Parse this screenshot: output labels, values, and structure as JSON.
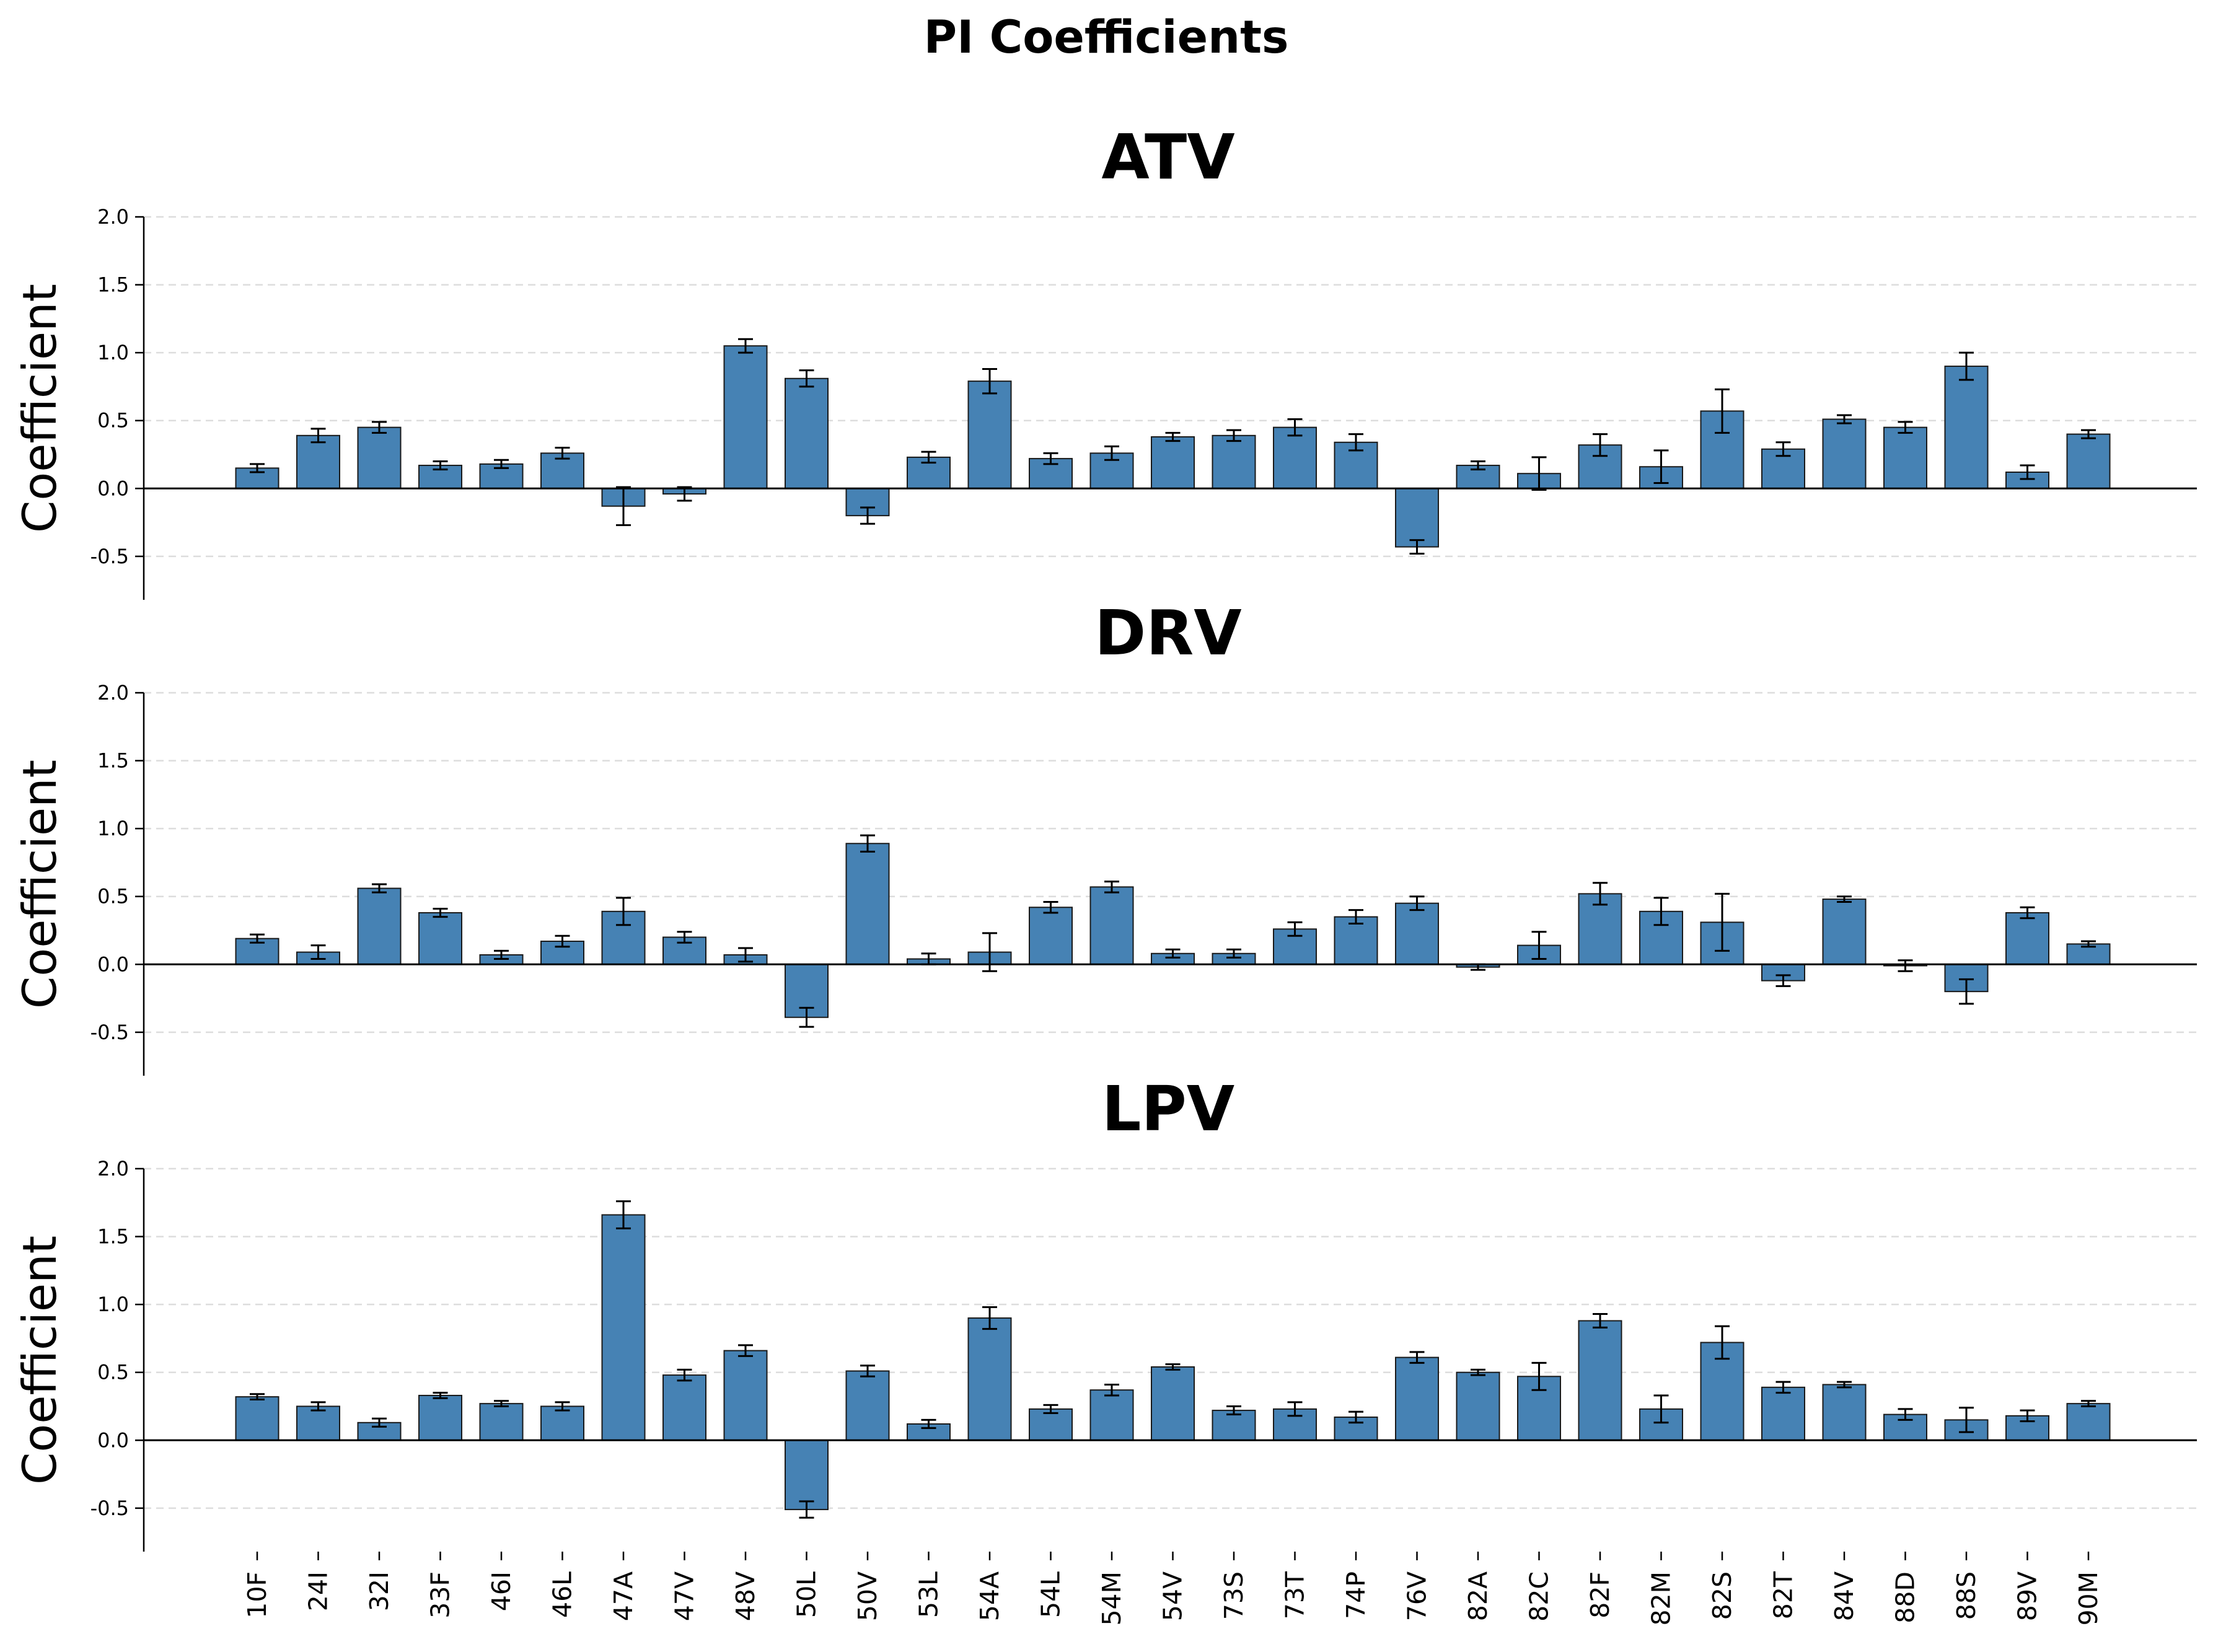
{
  "figure": {
    "title": "PI Coefficients"
  },
  "colors": {
    "bar_fill": "#4682b4",
    "bar_edge": "#1a1a1a",
    "error_bar": "#000000",
    "grid": "#dddddd",
    "axis": "#000000"
  },
  "chart_data": [
    {
      "type": "bar",
      "title": "ATV",
      "ylabel": "Coefficient",
      "xlabel": "",
      "ylim": [
        -0.82,
        2.0
      ],
      "yticks": [
        -0.5,
        0.0,
        0.5,
        1.0,
        1.5,
        2.0
      ],
      "grid": "horizontal dashed",
      "categories": [
        "10F",
        "24I",
        "32I",
        "33F",
        "46I",
        "46L",
        "47A",
        "47V",
        "48V",
        "50L",
        "50V",
        "53L",
        "54A",
        "54L",
        "54M",
        "54V",
        "73S",
        "73T",
        "74P",
        "76V",
        "82A",
        "82C",
        "82F",
        "82M",
        "82S",
        "82T",
        "84V",
        "88D",
        "88S",
        "89V",
        "90M"
      ],
      "values": [
        0.15,
        0.39,
        0.45,
        0.17,
        0.18,
        0.26,
        -0.13,
        -0.04,
        1.05,
        0.81,
        -0.2,
        0.23,
        0.79,
        0.22,
        0.26,
        0.38,
        0.39,
        0.45,
        0.34,
        -0.43,
        0.17,
        0.11,
        0.32,
        0.16,
        0.57,
        0.29,
        0.51,
        0.45,
        0.9,
        0.12,
        0.4
      ],
      "errors": [
        0.03,
        0.05,
        0.04,
        0.03,
        0.03,
        0.04,
        0.14,
        0.05,
        0.05,
        0.06,
        0.06,
        0.04,
        0.09,
        0.04,
        0.05,
        0.03,
        0.04,
        0.06,
        0.06,
        0.05,
        0.03,
        0.12,
        0.08,
        0.12,
        0.16,
        0.05,
        0.03,
        0.04,
        0.1,
        0.05,
        0.03
      ]
    },
    {
      "type": "bar",
      "title": "DRV",
      "ylabel": "Coefficient",
      "xlabel": "",
      "ylim": [
        -0.82,
        2.0
      ],
      "yticks": [
        -0.5,
        0.0,
        0.5,
        1.0,
        1.5,
        2.0
      ],
      "grid": "horizontal dashed",
      "categories": [
        "10F",
        "24I",
        "32I",
        "33F",
        "46I",
        "46L",
        "47A",
        "47V",
        "48V",
        "50L",
        "50V",
        "53L",
        "54A",
        "54L",
        "54M",
        "54V",
        "73S",
        "73T",
        "74P",
        "76V",
        "82A",
        "82C",
        "82F",
        "82M",
        "82S",
        "82T",
        "84V",
        "88D",
        "88S",
        "89V",
        "90M"
      ],
      "values": [
        0.19,
        0.09,
        0.56,
        0.38,
        0.07,
        0.17,
        0.39,
        0.2,
        0.07,
        -0.39,
        0.89,
        0.04,
        0.09,
        0.42,
        0.57,
        0.08,
        0.08,
        0.26,
        0.35,
        0.45,
        -0.02,
        0.14,
        0.52,
        0.39,
        0.31,
        -0.12,
        0.48,
        -0.01,
        -0.2,
        0.38,
        0.15
      ],
      "errors": [
        0.03,
        0.05,
        0.03,
        0.03,
        0.03,
        0.04,
        0.1,
        0.04,
        0.05,
        0.07,
        0.06,
        0.04,
        0.14,
        0.04,
        0.04,
        0.03,
        0.03,
        0.05,
        0.05,
        0.05,
        0.02,
        0.1,
        0.08,
        0.1,
        0.21,
        0.04,
        0.02,
        0.04,
        0.09,
        0.04,
        0.02
      ]
    },
    {
      "type": "bar",
      "title": "LPV",
      "ylabel": "Coefficient",
      "xlabel": "",
      "ylim": [
        -0.82,
        2.0
      ],
      "yticks": [
        -0.5,
        0.0,
        0.5,
        1.0,
        1.5,
        2.0
      ],
      "grid": "horizontal dashed",
      "categories": [
        "10F",
        "24I",
        "32I",
        "33F",
        "46I",
        "46L",
        "47A",
        "47V",
        "48V",
        "50L",
        "50V",
        "53L",
        "54A",
        "54L",
        "54M",
        "54V",
        "73S",
        "73T",
        "74P",
        "76V",
        "82A",
        "82C",
        "82F",
        "82M",
        "82S",
        "82T",
        "84V",
        "88D",
        "88S",
        "89V",
        "90M"
      ],
      "values": [
        0.32,
        0.25,
        0.13,
        0.33,
        0.27,
        0.25,
        1.66,
        0.48,
        0.66,
        -0.51,
        0.51,
        0.12,
        0.9,
        0.23,
        0.37,
        0.54,
        0.22,
        0.23,
        0.17,
        0.61,
        0.5,
        0.47,
        0.88,
        0.23,
        0.72,
        0.39,
        0.41,
        0.19,
        0.15,
        0.18,
        0.27
      ],
      "errors": [
        0.02,
        0.03,
        0.03,
        0.02,
        0.02,
        0.03,
        0.1,
        0.04,
        0.04,
        0.06,
        0.04,
        0.03,
        0.08,
        0.03,
        0.04,
        0.02,
        0.03,
        0.05,
        0.04,
        0.04,
        0.02,
        0.1,
        0.05,
        0.1,
        0.12,
        0.04,
        0.02,
        0.04,
        0.09,
        0.04,
        0.02
      ]
    }
  ]
}
